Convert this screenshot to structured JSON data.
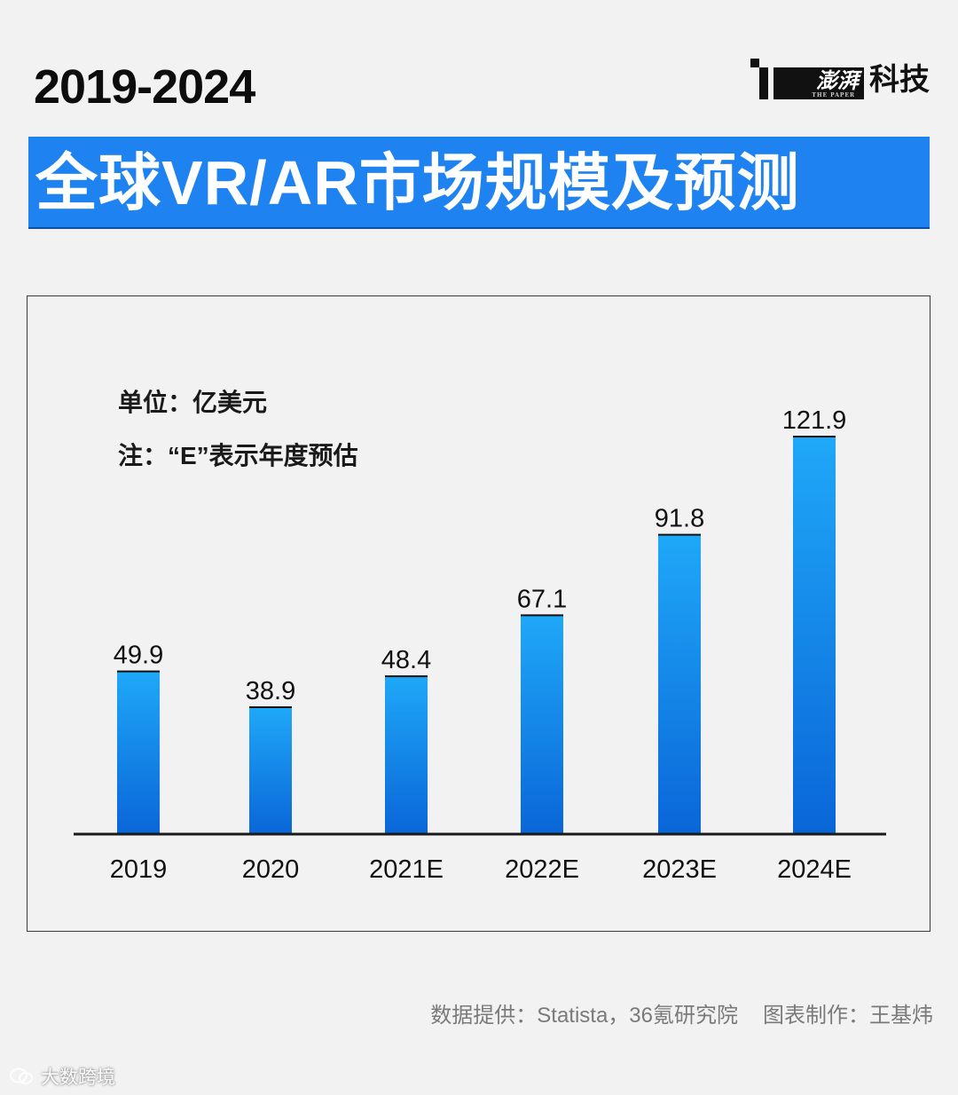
{
  "header": {
    "year_range": "2019-2024",
    "brand_name": "澎湃",
    "brand_subtext": "THE PAPER",
    "brand_label": "科技",
    "title": "全球VR/AR市场规模及预测"
  },
  "notes": {
    "unit": "单位：亿美元",
    "estimate": "注：“E”表示年度预估"
  },
  "footer": {
    "source": "数据提供：Statista，36氪研究院",
    "author": "图表制作：王基炜",
    "watermark": "大数跨境"
  },
  "colors": {
    "title_bar": "#1e82f0",
    "bar_top": "#1fa8f8",
    "bar_bottom": "#0a66d8",
    "axis": "#1a1a1a"
  },
  "chart_data": {
    "type": "bar",
    "title": "全球VR/AR市场规模及预测",
    "xlabel": "",
    "ylabel": "亿美元",
    "categories": [
      "2019",
      "2020",
      "2021E",
      "2022E",
      "2023E",
      "2024E"
    ],
    "values": [
      49.9,
      38.9,
      48.4,
      67.1,
      91.8,
      121.9
    ],
    "labels": [
      "49.9",
      "38.9",
      "48.4",
      "67.1",
      "91.8",
      "121.9"
    ],
    "ylim": [
      0,
      121.9
    ],
    "grid": false,
    "legend": "none"
  }
}
